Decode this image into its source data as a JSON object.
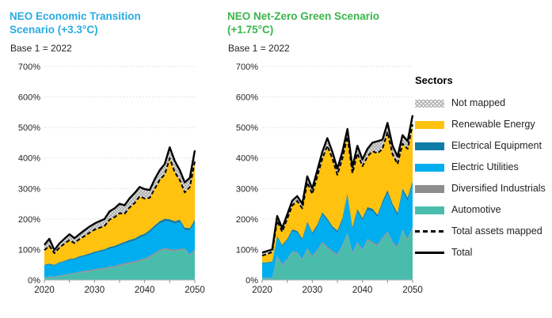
{
  "legend": {
    "title": "Sectors",
    "items": [
      {
        "id": "not-mapped",
        "label": "Not mapped",
        "swatch": "pattern",
        "color": "#c8c8c8"
      },
      {
        "id": "renewable-energy",
        "label": "Renewable Energy",
        "swatch": "fill",
        "color": "#ffc20e"
      },
      {
        "id": "electrical-equipment",
        "label": "Electrical Equipment",
        "swatch": "fill",
        "color": "#0f7ca8"
      },
      {
        "id": "electric-utilities",
        "label": "Electric Utilities",
        "swatch": "fill",
        "color": "#00aeef"
      },
      {
        "id": "diversified-industrials",
        "label": "Diversified Industrials",
        "swatch": "fill",
        "color": "#8e8e8e"
      },
      {
        "id": "automotive",
        "label": "Automotive",
        "swatch": "fill",
        "color": "#49bcac"
      },
      {
        "id": "total-assets-mapped",
        "label": "Total assets mapped",
        "swatch": "dashed",
        "color": "#000000"
      },
      {
        "id": "total",
        "label": "Total",
        "swatch": "solid",
        "color": "#000000"
      }
    ]
  },
  "chart_data": [
    {
      "type": "area",
      "stacked": true,
      "title": "NEO Economic Transition Scenario (+3.3°C)",
      "title_color": "#29abe2",
      "subtitle": "Base 1 = 2022",
      "ylim": [
        0,
        700
      ],
      "yticks": [
        0,
        100,
        200,
        300,
        400,
        500,
        600,
        700
      ],
      "y_unit": "%",
      "xticks": [
        2020,
        2030,
        2040,
        2050
      ],
      "x_minor_step": 5,
      "grid": true,
      "x": [
        2020,
        2021,
        2022,
        2023,
        2024,
        2025,
        2026,
        2027,
        2028,
        2029,
        2030,
        2031,
        2032,
        2033,
        2034,
        2035,
        2036,
        2037,
        2038,
        2039,
        2040,
        2041,
        2042,
        2043,
        2044,
        2045,
        2046,
        2047,
        2048,
        2049,
        2050
      ],
      "series": [
        {
          "name": "Automotive",
          "color": "#49bcac",
          "values": [
            6,
            8,
            8,
            12,
            15,
            18,
            20,
            24,
            26,
            28,
            32,
            34,
            36,
            40,
            42,
            46,
            50,
            54,
            56,
            62,
            66,
            74,
            84,
            94,
            100,
            96,
            94,
            98,
            100,
            80,
            96
          ]
        },
        {
          "name": "Diversified Industrials",
          "color": "#8e8e8e",
          "values": [
            3,
            3,
            3,
            3,
            3,
            3,
            3,
            4,
            4,
            4,
            4,
            4,
            4,
            4,
            4,
            5,
            5,
            5,
            5,
            5,
            5,
            5,
            5,
            5,
            5,
            5,
            5,
            4,
            4,
            4,
            4
          ]
        },
        {
          "name": "Electric Utilities",
          "color": "#00aeef",
          "values": [
            38,
            40,
            36,
            40,
            42,
            44,
            44,
            46,
            48,
            50,
            52,
            54,
            56,
            58,
            60,
            62,
            64,
            66,
            68,
            72,
            74,
            78,
            82,
            86,
            88,
            90,
            86,
            88,
            60,
            78,
            90
          ]
        },
        {
          "name": "Electrical Equipment",
          "color": "#0f7ca8",
          "values": [
            3,
            3,
            3,
            3,
            3,
            4,
            4,
            4,
            4,
            5,
            5,
            5,
            5,
            6,
            6,
            6,
            6,
            7,
            7,
            7,
            7,
            7,
            8,
            8,
            8,
            8,
            8,
            8,
            8,
            8,
            8
          ]
        },
        {
          "name": "Renewable Energy",
          "color": "#ffc20e",
          "values": [
            48,
            58,
            38,
            48,
            56,
            62,
            50,
            56,
            62,
            68,
            72,
            74,
            76,
            90,
            94,
            100,
            92,
            106,
            116,
            128,
            115,
            105,
            120,
            135,
            145,
            200,
            160,
            130,
            115,
            135,
            190
          ]
        },
        {
          "name": "Not mapped",
          "pattern": true,
          "color": "#c8c8c8",
          "values": [
            17,
            23,
            10,
            14,
            16,
            19,
            16,
            16,
            19,
            20,
            20,
            22,
            23,
            27,
            29,
            31,
            28,
            30,
            33,
            31,
            31,
            26,
            31,
            32,
            34,
            36,
            37,
            32,
            33,
            30,
            37
          ]
        }
      ],
      "lines": [
        {
          "name": "Total assets mapped",
          "style": "dashed",
          "color": "#000000",
          "values": [
            98,
            112,
            88,
            106,
            119,
            131,
            121,
            134,
            144,
            155,
            165,
            171,
            177,
            198,
            206,
            219,
            217,
            238,
            252,
            274,
            267,
            269,
            299,
            328,
            346,
            399,
            353,
            328,
            287,
            305,
            388
          ]
        },
        {
          "name": "Total",
          "style": "solid",
          "color": "#000000",
          "values": [
            115,
            135,
            98,
            120,
            135,
            150,
            137,
            150,
            163,
            175,
            185,
            193,
            200,
            225,
            235,
            250,
            245,
            268,
            285,
            305,
            298,
            295,
            330,
            360,
            380,
            435,
            390,
            360,
            320,
            335,
            425
          ]
        }
      ]
    },
    {
      "type": "area",
      "stacked": true,
      "title": "NEO Net-Zero Green Scenario (+1.75°C)",
      "title_color": "#39b54a",
      "subtitle": "Base 1 = 2022",
      "ylim": [
        0,
        700
      ],
      "yticks": [
        0,
        100,
        200,
        300,
        400,
        500,
        600,
        700
      ],
      "y_unit": "%",
      "xticks": [
        2020,
        2030,
        2040,
        2050
      ],
      "x_minor_step": 5,
      "grid": true,
      "x": [
        2020,
        2021,
        2022,
        2023,
        2024,
        2025,
        2026,
        2027,
        2028,
        2029,
        2030,
        2031,
        2032,
        2033,
        2034,
        2035,
        2036,
        2037,
        2038,
        2039,
        2040,
        2041,
        2042,
        2043,
        2044,
        2045,
        2046,
        2047,
        2048,
        2049,
        2050
      ],
      "series": [
        {
          "name": "Automotive",
          "color": "#49bcac",
          "values": [
            5,
            5,
            6,
            75,
            48,
            65,
            90,
            88,
            65,
            100,
            75,
            95,
            120,
            105,
            90,
            80,
            110,
            150,
            85,
            120,
            95,
            130,
            120,
            110,
            135,
            155,
            120,
            105,
            160,
            130,
            170
          ]
        },
        {
          "name": "Diversified Industrials",
          "color": "#8e8e8e",
          "values": [
            2,
            2,
            2,
            4,
            4,
            4,
            4,
            4,
            4,
            5,
            5,
            5,
            5,
            5,
            5,
            5,
            5,
            5,
            5,
            5,
            5,
            5,
            5,
            5,
            5,
            5,
            5,
            5,
            5,
            5,
            5
          ]
        },
        {
          "name": "Electric Utilities",
          "color": "#00aeef",
          "values": [
            48,
            48,
            50,
            61,
            58,
            61,
            66,
            63,
            61,
            80,
            70,
            75,
            90,
            85,
            75,
            70,
            80,
            120,
            75,
            100,
            95,
            95,
            100,
            90,
            110,
            125,
            115,
            100,
            125,
            125,
            140
          ]
        },
        {
          "name": "Electrical Equipment",
          "color": "#0f7ca8",
          "values": [
            3,
            3,
            3,
            5,
            5,
            5,
            6,
            6,
            6,
            6,
            6,
            7,
            7,
            7,
            7,
            7,
            8,
            8,
            8,
            8,
            8,
            9,
            9,
            9,
            9,
            10,
            10,
            10,
            10,
            10,
            10
          ]
        },
        {
          "name": "Renewable Energy",
          "color": "#ffc20e",
          "values": [
            22,
            27,
            31,
            50,
            43,
            66,
            78,
            98,
            99,
            129,
            126,
            158,
            176,
            238,
            221,
            183,
            195,
            187,
            177,
            182,
            170,
            166,
            188,
            201,
            171,
            190,
            162,
            160,
            147,
            160,
            185
          ]
        },
        {
          "name": "Not mapped",
          "pattern": true,
          "color": "#c8c8c8",
          "values": [
            10,
            10,
            8,
            15,
            12,
            14,
            16,
            16,
            15,
            20,
            18,
            20,
            22,
            25,
            22,
            20,
            22,
            25,
            20,
            25,
            22,
            25,
            28,
            40,
            30,
            30,
            28,
            25,
            28,
            25,
            30
          ]
        }
      ],
      "lines": [
        {
          "name": "Total assets mapped",
          "style": "dashed",
          "color": "#000000",
          "values": [
            80,
            85,
            92,
            195,
            158,
            201,
            244,
            259,
            235,
            320,
            282,
            340,
            398,
            440,
            398,
            345,
            398,
            470,
            350,
            415,
            373,
            405,
            422,
            415,
            430,
            485,
            412,
            380,
            447,
            430,
            510
          ]
        },
        {
          "name": "Total",
          "style": "solid",
          "color": "#000000",
          "values": [
            90,
            95,
            100,
            210,
            170,
            215,
            260,
            275,
            250,
            340,
            300,
            360,
            420,
            465,
            420,
            365,
            420,
            495,
            370,
            440,
            395,
            430,
            450,
            455,
            460,
            515,
            440,
            405,
            475,
            455,
            540
          ]
        }
      ]
    }
  ]
}
